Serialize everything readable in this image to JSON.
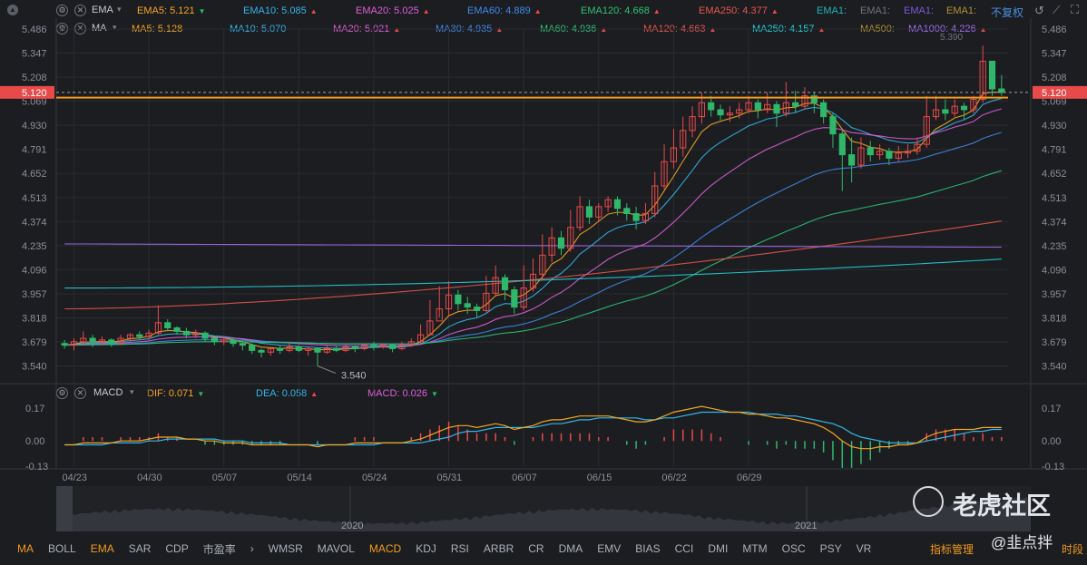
{
  "ema_row": {
    "name": "EMA",
    "items": [
      {
        "label": "EMA5: 5.121",
        "color": "#f5a623",
        "dir": "down"
      },
      {
        "label": "EMA10: 5.085",
        "color": "#33b6e8",
        "dir": "up"
      },
      {
        "label": "EMA20: 5.025",
        "color": "#de5fd8",
        "dir": "up"
      },
      {
        "label": "EMA60: 4.889",
        "color": "#3d8be8",
        "dir": "up"
      },
      {
        "label": "EMA120: 4.668",
        "color": "#2ec275",
        "dir": "up"
      },
      {
        "label": "EMA250: 4.377",
        "color": "#e8574a",
        "dir": "up"
      },
      {
        "label": "EMA1:",
        "color": "#20b6b6",
        "dir": ""
      },
      {
        "label": "EMA1:",
        "color": "#6f737c",
        "dir": ""
      },
      {
        "label": "EMA1:",
        "color": "#7d5ad6",
        "dir": ""
      },
      {
        "label": "EMA1:",
        "color": "#b39232",
        "dir": ""
      }
    ],
    "fq_label": "不复权"
  },
  "ma_row": {
    "name": "MA",
    "items": [
      {
        "label": "MA5: 5.128",
        "color": "#f5a623",
        "dir": ""
      },
      {
        "label": "MA10: 5.070",
        "color": "#33b6e8",
        "dir": ""
      },
      {
        "label": "MA20: 5.021",
        "color": "#de5fd8",
        "dir": "up"
      },
      {
        "label": "MA30: 4.935",
        "color": "#3d8be8",
        "dir": "up"
      },
      {
        "label": "MA60: 4.936",
        "color": "#2ec275",
        "dir": "up"
      },
      {
        "label": "MA120: 4.663",
        "color": "#e8574a",
        "dir": "up"
      },
      {
        "label": "MA250: 4.157",
        "color": "#20d0d8",
        "dir": "up"
      },
      {
        "label": "MA500:",
        "color": "#b39232",
        "dir": ""
      },
      {
        "label": "MA1000: 4.226",
        "color": "#a36cf0",
        "dir": "up"
      }
    ]
  },
  "macd_row": {
    "name": "MACD",
    "items": [
      {
        "label": "DIF: 0.071",
        "color": "#f5a623",
        "dir": "down"
      },
      {
        "label": "DEA: 0.058",
        "color": "#33b6e8",
        "dir": "up"
      },
      {
        "label": "MACD: 0.026",
        "color": "#de5fd8",
        "dir": "down"
      }
    ]
  },
  "chart_data": {
    "type": "candlestick",
    "price_axis_ticks": [
      "5.486",
      "5.347",
      "5.208",
      "5.069",
      "4.930",
      "4.791",
      "4.652",
      "4.513",
      "4.374",
      "4.235",
      "4.096",
      "3.957",
      "3.818",
      "3.679",
      "3.540"
    ],
    "price_ylim": [
      3.48,
      5.486
    ],
    "current_price": "5.120",
    "low_label": "3.540",
    "high_label": "5.390",
    "resistance_level": 5.09,
    "date_ticks": [
      "04/23",
      "04/30",
      "05/07",
      "05/14",
      "05/24",
      "05/31",
      "06/07",
      "06/15",
      "06/22",
      "06/29"
    ],
    "date_tick_index": [
      1,
      9,
      17,
      25,
      33,
      41,
      49,
      57,
      65,
      73
    ],
    "candles": [
      [
        3.67,
        3.66,
        3.69,
        3.64
      ],
      [
        3.66,
        3.68,
        3.7,
        3.63
      ],
      [
        3.68,
        3.7,
        3.74,
        3.66
      ],
      [
        3.7,
        3.68,
        3.72,
        3.65
      ],
      [
        3.68,
        3.69,
        3.71,
        3.66
      ],
      [
        3.69,
        3.67,
        3.7,
        3.65
      ],
      [
        3.67,
        3.7,
        3.72,
        3.66
      ],
      [
        3.7,
        3.72,
        3.73,
        3.68
      ],
      [
        3.72,
        3.71,
        3.74,
        3.69
      ],
      [
        3.71,
        3.73,
        3.75,
        3.69
      ],
      [
        3.73,
        3.79,
        3.89,
        3.72
      ],
      [
        3.79,
        3.76,
        3.81,
        3.74
      ],
      [
        3.76,
        3.74,
        3.77,
        3.72
      ],
      [
        3.74,
        3.72,
        3.76,
        3.7
      ],
      [
        3.72,
        3.73,
        3.75,
        3.7
      ],
      [
        3.73,
        3.7,
        3.74,
        3.68
      ],
      [
        3.7,
        3.68,
        3.71,
        3.66
      ],
      [
        3.68,
        3.69,
        3.71,
        3.66
      ],
      [
        3.69,
        3.67,
        3.7,
        3.65
      ],
      [
        3.67,
        3.66,
        3.68,
        3.63
      ],
      [
        3.66,
        3.63,
        3.67,
        3.61
      ],
      [
        3.63,
        3.62,
        3.64,
        3.59
      ],
      [
        3.62,
        3.64,
        3.65,
        3.6
      ],
      [
        3.64,
        3.63,
        3.66,
        3.61
      ],
      [
        3.63,
        3.65,
        3.67,
        3.62
      ],
      [
        3.65,
        3.63,
        3.66,
        3.62
      ],
      [
        3.63,
        3.64,
        3.65,
        3.6
      ],
      [
        3.64,
        3.62,
        3.65,
        3.54
      ],
      [
        3.62,
        3.64,
        3.66,
        3.61
      ],
      [
        3.64,
        3.63,
        3.66,
        3.62
      ],
      [
        3.63,
        3.65,
        3.67,
        3.62
      ],
      [
        3.65,
        3.64,
        3.66,
        3.62
      ],
      [
        3.64,
        3.66,
        3.67,
        3.63
      ],
      [
        3.66,
        3.65,
        3.68,
        3.63
      ],
      [
        3.65,
        3.66,
        3.67,
        3.64
      ],
      [
        3.66,
        3.64,
        3.67,
        3.62
      ],
      [
        3.64,
        3.66,
        3.68,
        3.63
      ],
      [
        3.66,
        3.68,
        3.7,
        3.65
      ],
      [
        3.68,
        3.72,
        3.78,
        3.67
      ],
      [
        3.72,
        3.8,
        3.92,
        3.72
      ],
      [
        3.8,
        3.87,
        4.0,
        3.82
      ],
      [
        3.87,
        3.95,
        4.03,
        3.83
      ],
      [
        3.95,
        3.9,
        3.98,
        3.86
      ],
      [
        3.9,
        3.88,
        3.94,
        3.84
      ],
      [
        3.88,
        3.86,
        3.9,
        3.82
      ],
      [
        3.86,
        3.96,
        4.06,
        3.85
      ],
      [
        3.96,
        4.05,
        4.12,
        3.94
      ],
      [
        4.05,
        3.98,
        4.07,
        3.92
      ],
      [
        3.98,
        3.88,
        4.0,
        3.84
      ],
      [
        3.88,
        3.99,
        4.12,
        3.86
      ],
      [
        3.99,
        4.07,
        4.16,
        3.97
      ],
      [
        4.07,
        4.18,
        4.3,
        4.05
      ],
      [
        4.18,
        4.28,
        4.34,
        4.14
      ],
      [
        4.28,
        4.22,
        4.32,
        4.18
      ],
      [
        4.22,
        4.34,
        4.44,
        4.2
      ],
      [
        4.34,
        4.46,
        4.52,
        4.32
      ],
      [
        4.46,
        4.4,
        4.5,
        4.36
      ],
      [
        4.4,
        4.46,
        4.48,
        4.38
      ],
      [
        4.46,
        4.5,
        4.52,
        4.43
      ],
      [
        4.5,
        4.45,
        4.52,
        4.41
      ],
      [
        4.45,
        4.42,
        4.48,
        4.38
      ],
      [
        4.42,
        4.38,
        4.46,
        4.33
      ],
      [
        4.38,
        4.42,
        4.48,
        4.36
      ],
      [
        4.42,
        4.58,
        4.66,
        4.4
      ],
      [
        4.58,
        4.72,
        4.82,
        4.56
      ],
      [
        4.72,
        4.8,
        4.91,
        4.68
      ],
      [
        4.8,
        4.9,
        4.98,
        4.75
      ],
      [
        4.9,
        4.98,
        5.04,
        4.86
      ],
      [
        4.98,
        5.06,
        5.12,
        4.94
      ],
      [
        5.06,
        5.02,
        5.1,
        4.98
      ],
      [
        5.02,
        4.99,
        5.05,
        4.96
      ],
      [
        4.99,
        5.0,
        5.04,
        4.95
      ],
      [
        5.0,
        5.02,
        5.06,
        4.97
      ],
      [
        5.02,
        5.06,
        5.1,
        5.0
      ],
      [
        5.06,
        5.02,
        5.08,
        4.97
      ],
      [
        5.02,
        5.05,
        5.12,
        5.0
      ],
      [
        5.05,
        5.0,
        5.07,
        4.92
      ],
      [
        5.0,
        5.06,
        5.18,
        4.98
      ],
      [
        5.06,
        5.04,
        5.13,
        5.0
      ],
      [
        5.04,
        5.1,
        5.15,
        5.02
      ],
      [
        5.1,
        5.06,
        5.12,
        5.0
      ],
      [
        5.06,
        4.98,
        5.08,
        4.94
      ],
      [
        4.98,
        4.88,
        5.0,
        4.8
      ],
      [
        4.88,
        4.76,
        4.9,
        4.55
      ],
      [
        4.76,
        4.7,
        4.86,
        4.6
      ],
      [
        4.7,
        4.8,
        4.86,
        4.68
      ],
      [
        4.8,
        4.76,
        4.84,
        4.72
      ],
      [
        4.76,
        4.78,
        4.82,
        4.73
      ],
      [
        4.78,
        4.74,
        4.8,
        4.7
      ],
      [
        4.74,
        4.77,
        4.81,
        4.72
      ],
      [
        4.77,
        4.78,
        4.82,
        4.74
      ],
      [
        4.78,
        4.82,
        4.86,
        4.76
      ],
      [
        4.82,
        4.98,
        5.1,
        4.8
      ],
      [
        4.98,
        5.02,
        5.1,
        4.96
      ],
      [
        5.02,
        5.0,
        5.08,
        4.96
      ],
      [
        5.0,
        5.04,
        5.08,
        4.98
      ],
      [
        5.04,
        5.02,
        5.06,
        4.96
      ],
      [
        5.02,
        5.08,
        5.1,
        5.0
      ],
      [
        5.08,
        5.3,
        5.39,
        5.06
      ],
      [
        5.3,
        5.14,
        5.24,
        5.1
      ],
      [
        5.14,
        5.12,
        5.22,
        5.1
      ]
    ],
    "ma_lines": [
      {
        "name": "EMA5",
        "color": "#f5a623",
        "start": 3.67,
        "end": 5.121
      },
      {
        "name": "EMA10",
        "color": "#33b6e8",
        "start": 3.67,
        "end": 5.085
      },
      {
        "name": "EMA20",
        "color": "#de5fd8",
        "start": 3.68,
        "end": 5.025
      },
      {
        "name": "EMA60",
        "color": "#3d8be8",
        "start": 3.7,
        "end": 4.889
      },
      {
        "name": "EMA120",
        "color": "#2ec275",
        "start": 3.72,
        "end": 4.668
      },
      {
        "name": "EMA250",
        "color": "#e8574a",
        "start": 3.87,
        "end": 4.377
      },
      {
        "name": "MA250",
        "color": "#20d0d8",
        "start": 3.99,
        "end": 4.157
      },
      {
        "name": "MA1000",
        "color": "#a36cf0",
        "start": 4.245,
        "end": 4.226
      }
    ],
    "macd_axis_ticks": [
      "0.17",
      "0.00",
      "-0.13"
    ],
    "macd_ylim": [
      -0.15,
      0.19
    ],
    "dif": [
      -0.02,
      -0.02,
      -0.01,
      -0.01,
      -0.01,
      -0.01,
      0.0,
      0.0,
      0.0,
      0.01,
      0.02,
      0.02,
      0.02,
      0.01,
      0.01,
      0.0,
      0.0,
      -0.01,
      -0.01,
      -0.01,
      -0.02,
      -0.02,
      -0.02,
      -0.02,
      -0.02,
      -0.02,
      -0.02,
      -0.03,
      -0.02,
      -0.02,
      -0.02,
      -0.01,
      -0.01,
      -0.01,
      -0.01,
      -0.01,
      -0.01,
      0.0,
      0.01,
      0.03,
      0.05,
      0.07,
      0.08,
      0.08,
      0.07,
      0.08,
      0.09,
      0.08,
      0.06,
      0.07,
      0.08,
      0.1,
      0.11,
      0.11,
      0.12,
      0.13,
      0.13,
      0.13,
      0.13,
      0.12,
      0.11,
      0.1,
      0.1,
      0.11,
      0.13,
      0.15,
      0.16,
      0.17,
      0.18,
      0.17,
      0.16,
      0.15,
      0.15,
      0.14,
      0.14,
      0.13,
      0.12,
      0.12,
      0.11,
      0.1,
      0.09,
      0.07,
      0.04,
      0.0,
      -0.03,
      -0.04,
      -0.04,
      -0.03,
      -0.03,
      -0.02,
      -0.02,
      -0.01,
      0.02,
      0.04,
      0.05,
      0.06,
      0.06,
      0.06,
      0.07,
      0.07,
      0.07
    ],
    "dea": [
      -0.02,
      -0.02,
      -0.02,
      -0.02,
      -0.02,
      -0.01,
      -0.01,
      -0.01,
      -0.01,
      0.0,
      0.0,
      0.01,
      0.01,
      0.01,
      0.01,
      0.01,
      0.01,
      0.0,
      0.0,
      0.0,
      -0.01,
      -0.01,
      -0.01,
      -0.01,
      -0.02,
      -0.02,
      -0.02,
      -0.02,
      -0.02,
      -0.02,
      -0.02,
      -0.02,
      -0.02,
      -0.02,
      -0.01,
      -0.01,
      -0.01,
      -0.01,
      -0.01,
      0.0,
      0.01,
      0.02,
      0.04,
      0.05,
      0.05,
      0.06,
      0.07,
      0.07,
      0.07,
      0.07,
      0.07,
      0.08,
      0.09,
      0.09,
      0.1,
      0.11,
      0.11,
      0.12,
      0.12,
      0.12,
      0.12,
      0.12,
      0.11,
      0.11,
      0.12,
      0.12,
      0.13,
      0.14,
      0.15,
      0.15,
      0.15,
      0.15,
      0.15,
      0.15,
      0.14,
      0.14,
      0.14,
      0.13,
      0.13,
      0.12,
      0.11,
      0.1,
      0.09,
      0.07,
      0.04,
      0.02,
      0.01,
      0.0,
      -0.01,
      -0.01,
      -0.01,
      -0.01,
      0.0,
      0.01,
      0.02,
      0.03,
      0.04,
      0.05,
      0.05,
      0.06,
      0.06
    ]
  },
  "mini": {
    "year1": "2020",
    "year2": "2021"
  },
  "tabs": [
    {
      "label": "MA",
      "active": true
    },
    {
      "label": "BOLL",
      "active": false
    },
    {
      "label": "EMA",
      "active": true
    },
    {
      "label": "SAR",
      "active": false
    },
    {
      "label": "CDP",
      "active": false
    },
    {
      "label": "市盈率",
      "active": false
    },
    {
      "label": "›",
      "active": false
    },
    {
      "label": "WMSR",
      "active": false
    },
    {
      "label": "MAVOL",
      "active": false
    },
    {
      "label": "MACD",
      "active": true
    },
    {
      "label": "KDJ",
      "active": false
    },
    {
      "label": "RSI",
      "active": false
    },
    {
      "label": "ARBR",
      "active": false
    },
    {
      "label": "CR",
      "active": false
    },
    {
      "label": "DMA",
      "active": false
    },
    {
      "label": "EMV",
      "active": false
    },
    {
      "label": "BIAS",
      "active": false
    },
    {
      "label": "CCI",
      "active": false
    },
    {
      "label": "DMI",
      "active": false
    },
    {
      "label": "MTM",
      "active": false
    },
    {
      "label": "OSC",
      "active": false
    },
    {
      "label": "PSY",
      "active": false
    },
    {
      "label": "VR",
      "active": false
    }
  ],
  "manage_label": "指标管理",
  "period_label": "时段",
  "watermark": {
    "brand": "老虎社区",
    "handle": "@韭点拌"
  }
}
